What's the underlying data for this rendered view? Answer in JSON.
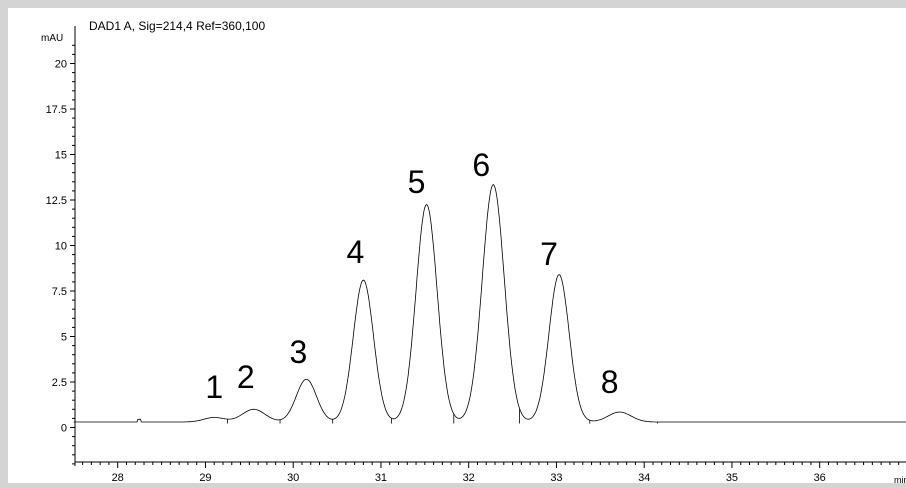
{
  "chart_data": {
    "type": "line",
    "title": "DAD1 A, Sig=214,4 Ref=360,100",
    "xlabel": "min",
    "ylabel": "mAU",
    "xlim": [
      27.5,
      37.0
    ],
    "ylim": [
      -2.0,
      22.0
    ],
    "x_ticks": [
      28,
      29,
      30,
      31,
      32,
      33,
      34,
      35,
      36
    ],
    "x_tick_labels": [
      "28",
      "29",
      "30",
      "31",
      "32",
      "33",
      "34",
      "35",
      "36"
    ],
    "y_ticks": [
      0,
      2.5,
      5,
      7.5,
      10,
      12.5,
      15,
      17.5,
      20
    ],
    "y_tick_labels": [
      "0",
      "2.5",
      "5",
      "7.5",
      "10",
      "12.5",
      "15",
      "17.5",
      "20"
    ],
    "baseline": 0.3,
    "grid": false,
    "peaks": [
      {
        "label": "1",
        "rt": 29.1,
        "height": 0.25
      },
      {
        "label": "2",
        "rt": 29.55,
        "height": 0.7
      },
      {
        "label": "3",
        "rt": 30.15,
        "height": 2.35
      },
      {
        "label": "4",
        "rt": 30.8,
        "height": 7.8
      },
      {
        "label": "5",
        "rt": 31.52,
        "height": 11.95
      },
      {
        "label": "6",
        "rt": 32.28,
        "height": 13.05
      },
      {
        "label": "7",
        "rt": 33.03,
        "height": 8.1
      },
      {
        "label": "8",
        "rt": 33.72,
        "height": 0.55
      }
    ],
    "integration_drops": [
      29.25,
      29.85,
      30.45,
      31.12,
      31.83,
      32.58,
      33.38,
      34.15
    ],
    "line_color": "#000000",
    "background_color": "#ffffff",
    "frame_color": "#d4d4d4"
  }
}
